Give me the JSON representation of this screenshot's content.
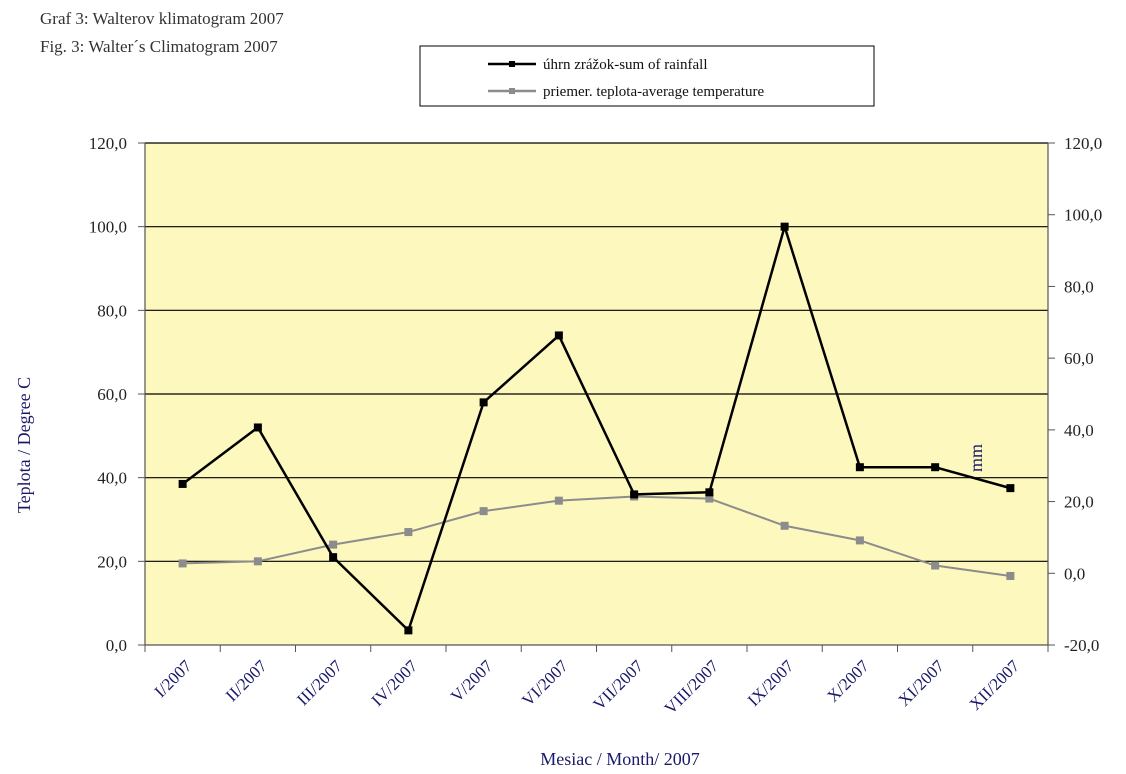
{
  "title_lines": [
    "Graf 3: Walterov klimatogram 2007",
    "Fig. 3: Walter´s Climatogram 2007"
  ],
  "colors": {
    "plot_background": "#fdf8be",
    "rainfall": "#000000",
    "temperature": "#8c8c8c",
    "category_text": "#1a1a6a"
  },
  "chart_data": {
    "type": "line",
    "title": "Graf 3: Walterov klimatogram 2007",
    "subtitle": "Fig. 3: Walter´s Climatogram 2007",
    "xlabel": "Mesiac / Month/ 2007",
    "ylabel_left": "Teplota / Degree C",
    "ylabel_right": "mm",
    "categories": [
      "I/2007",
      "II/2007",
      "III/2007",
      "IV/2007",
      "V/2007",
      "VI/2007",
      "VII/2007",
      "VIII/2007",
      "IX/2007",
      "X/2007",
      "XI/2007",
      "XII/2007"
    ],
    "left_axis": {
      "min": 0,
      "max": 120,
      "step": 20,
      "tick_labels": [
        "0,0",
        "20,0",
        "40,0",
        "60,0",
        "80,0",
        "100,0",
        "120,0"
      ]
    },
    "right_axis": {
      "min": -20,
      "max": 120,
      "step": 20,
      "tick_labels": [
        "-20,0",
        "0,0",
        "20,0",
        "40,0",
        "60,0",
        "80,0",
        "100,0",
        "120,0"
      ]
    },
    "grid": true,
    "legend_position": "top-right",
    "series": [
      {
        "name": "úhrn zrážok-sum of rainfall",
        "axis": "left",
        "color": "#000000",
        "values": [
          38.5,
          52.0,
          21.0,
          3.5,
          58.0,
          74.0,
          36.0,
          36.5,
          100.0,
          42.5,
          42.5,
          37.5
        ]
      },
      {
        "name": "priemer. teplota-average temperature",
        "axis": "left",
        "color": "#8c8c8c",
        "values": [
          19.5,
          20.0,
          24.0,
          27.0,
          32.0,
          34.5,
          35.5,
          35.0,
          28.5,
          25.0,
          19.0,
          16.5
        ]
      }
    ]
  }
}
